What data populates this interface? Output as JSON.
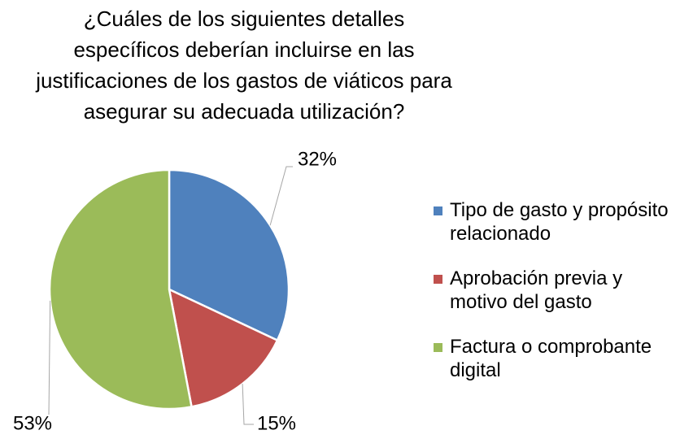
{
  "chart_data": {
    "type": "pie",
    "title": "¿Cuáles de los siguientes detalles específicos deberían incluirse en las justificaciones de los gastos de viáticos para asegurar su adecuada utilización?",
    "categories": [
      "Tipo de gasto y propósito relacionado",
      "Aprobación previa y motivo del gasto",
      "Factura o comprobante digital"
    ],
    "values": [
      32,
      15,
      53
    ],
    "value_labels": [
      "32%",
      "15%",
      "53%"
    ],
    "colors": [
      "#4f81bd",
      "#c0504d",
      "#9bbb59"
    ],
    "legend": "right"
  }
}
